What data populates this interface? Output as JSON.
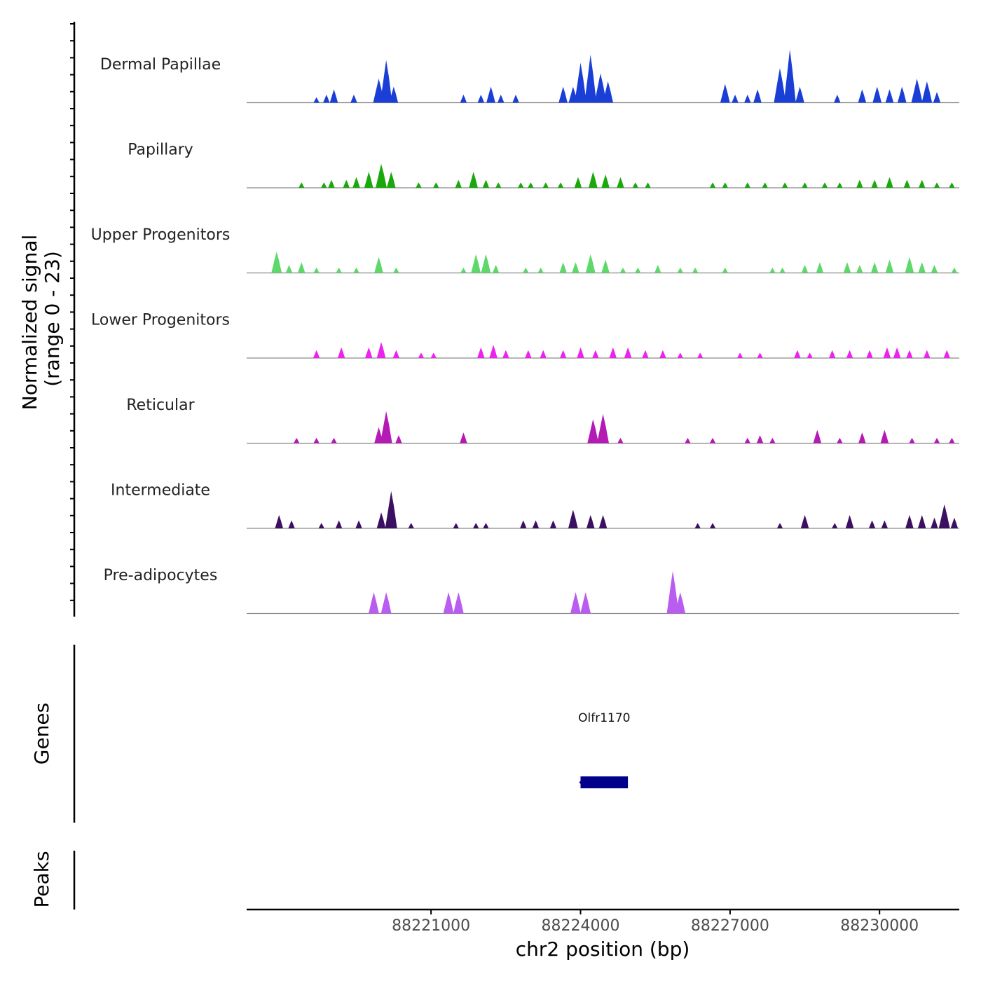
{
  "chart_data": {
    "type": "area",
    "title": "",
    "xlabel": "chr2 position (bp)",
    "ylabel": [
      "Normalized signal",
      "(range 0 - 23)"
    ],
    "xlim": [
      88217300,
      88231600
    ],
    "ylim": [
      0,
      23
    ],
    "x_ticks": [
      88221000,
      88224000,
      88227000,
      88230000
    ],
    "x_tick_labels": [
      "88221000",
      "88224000",
      "88227000",
      "88230000"
    ],
    "series": [
      {
        "name": "Dermal Papillae",
        "color": "#1a3fd6",
        "peaks": [
          [
            88218700,
            2
          ],
          [
            88218900,
            3
          ],
          [
            88219050,
            5
          ],
          [
            88219450,
            3
          ],
          [
            88219950,
            9
          ],
          [
            88220100,
            16
          ],
          [
            88220250,
            6
          ],
          [
            88221650,
            3
          ],
          [
            88222000,
            3
          ],
          [
            88222200,
            6
          ],
          [
            88222400,
            3
          ],
          [
            88222700,
            3
          ],
          [
            88223650,
            6
          ],
          [
            88223850,
            6
          ],
          [
            88224000,
            15
          ],
          [
            88224200,
            18
          ],
          [
            88224400,
            11
          ],
          [
            88224550,
            8
          ],
          [
            88226900,
            7
          ],
          [
            88227100,
            3
          ],
          [
            88227350,
            3
          ],
          [
            88227550,
            5
          ],
          [
            88228000,
            13
          ],
          [
            88228200,
            20
          ],
          [
            88228400,
            6
          ],
          [
            88229150,
            3
          ],
          [
            88229650,
            5
          ],
          [
            88229950,
            6
          ],
          [
            88230200,
            5
          ],
          [
            88230450,
            6
          ],
          [
            88230750,
            9
          ],
          [
            88230950,
            8
          ],
          [
            88231150,
            4
          ]
        ]
      },
      {
        "name": "Papillary",
        "color": "#1aa80c",
        "peaks": [
          [
            88218400,
            2
          ],
          [
            88218850,
            2
          ],
          [
            88219000,
            3
          ],
          [
            88219300,
            3
          ],
          [
            88219500,
            4
          ],
          [
            88219750,
            6
          ],
          [
            88220000,
            9
          ],
          [
            88220200,
            6
          ],
          [
            88220750,
            2
          ],
          [
            88221100,
            2
          ],
          [
            88221550,
            3
          ],
          [
            88221850,
            6
          ],
          [
            88222100,
            3
          ],
          [
            88222350,
            2
          ],
          [
            88222800,
            2
          ],
          [
            88223000,
            2
          ],
          [
            88223300,
            2
          ],
          [
            88223600,
            2
          ],
          [
            88223950,
            4
          ],
          [
            88224250,
            6
          ],
          [
            88224500,
            5
          ],
          [
            88224800,
            4
          ],
          [
            88225100,
            2
          ],
          [
            88225350,
            2
          ],
          [
            88226650,
            2
          ],
          [
            88226900,
            2
          ],
          [
            88227350,
            2
          ],
          [
            88227700,
            2
          ],
          [
            88228100,
            2
          ],
          [
            88228500,
            2
          ],
          [
            88228900,
            2
          ],
          [
            88229200,
            2
          ],
          [
            88229600,
            3
          ],
          [
            88229900,
            3
          ],
          [
            88230200,
            4
          ],
          [
            88230550,
            3
          ],
          [
            88230850,
            3
          ],
          [
            88231150,
            2
          ],
          [
            88231450,
            2
          ]
        ]
      },
      {
        "name": "Upper Progenitors",
        "color": "#5ed86a",
        "peaks": [
          [
            88217900,
            8
          ],
          [
            88218150,
            3
          ],
          [
            88218400,
            4
          ],
          [
            88218700,
            2
          ],
          [
            88219150,
            2
          ],
          [
            88219500,
            2
          ],
          [
            88219950,
            6
          ],
          [
            88220300,
            2
          ],
          [
            88221650,
            2
          ],
          [
            88221900,
            7
          ],
          [
            88222100,
            7
          ],
          [
            88222300,
            3
          ],
          [
            88222900,
            2
          ],
          [
            88223200,
            2
          ],
          [
            88223650,
            4
          ],
          [
            88223900,
            4
          ],
          [
            88224200,
            7
          ],
          [
            88224500,
            5
          ],
          [
            88224850,
            2
          ],
          [
            88225150,
            2
          ],
          [
            88225550,
            3
          ],
          [
            88226000,
            2
          ],
          [
            88226300,
            2
          ],
          [
            88226900,
            2
          ],
          [
            88227850,
            2
          ],
          [
            88228050,
            2
          ],
          [
            88228500,
            3
          ],
          [
            88228800,
            4
          ],
          [
            88229350,
            4
          ],
          [
            88229600,
            3
          ],
          [
            88229900,
            4
          ],
          [
            88230200,
            5
          ],
          [
            88230600,
            6
          ],
          [
            88230850,
            4
          ],
          [
            88231100,
            3
          ],
          [
            88231500,
            2
          ]
        ]
      },
      {
        "name": "Lower Progenitors",
        "color": "#ee22ee",
        "peaks": [
          [
            88218700,
            3
          ],
          [
            88219200,
            4
          ],
          [
            88219750,
            4
          ],
          [
            88220000,
            6
          ],
          [
            88220300,
            3
          ],
          [
            88220800,
            2
          ],
          [
            88221050,
            2
          ],
          [
            88222000,
            4
          ],
          [
            88222250,
            5
          ],
          [
            88222500,
            3
          ],
          [
            88222950,
            3
          ],
          [
            88223250,
            3
          ],
          [
            88223650,
            3
          ],
          [
            88224000,
            4
          ],
          [
            88224300,
            3
          ],
          [
            88224650,
            4
          ],
          [
            88224950,
            4
          ],
          [
            88225300,
            3
          ],
          [
            88225650,
            3
          ],
          [
            88226000,
            2
          ],
          [
            88226400,
            2
          ],
          [
            88227200,
            2
          ],
          [
            88227600,
            2
          ],
          [
            88228350,
            3
          ],
          [
            88228600,
            2
          ],
          [
            88229050,
            3
          ],
          [
            88229400,
            3
          ],
          [
            88229800,
            3
          ],
          [
            88230150,
            4
          ],
          [
            88230350,
            4
          ],
          [
            88230600,
            3
          ],
          [
            88230950,
            3
          ],
          [
            88231350,
            3
          ]
        ]
      },
      {
        "name": "Reticular",
        "color": "#b41ab4",
        "peaks": [
          [
            88218300,
            2
          ],
          [
            88218700,
            2
          ],
          [
            88219050,
            2
          ],
          [
            88219950,
            6
          ],
          [
            88220100,
            12
          ],
          [
            88220350,
            3
          ],
          [
            88221650,
            4
          ],
          [
            88224250,
            9
          ],
          [
            88224450,
            11
          ],
          [
            88224800,
            2
          ],
          [
            88226150,
            2
          ],
          [
            88226650,
            2
          ],
          [
            88227350,
            2
          ],
          [
            88227600,
            3
          ],
          [
            88227850,
            2
          ],
          [
            88228750,
            5
          ],
          [
            88229200,
            2
          ],
          [
            88229650,
            4
          ],
          [
            88230100,
            5
          ],
          [
            88230650,
            2
          ],
          [
            88231150,
            2
          ],
          [
            88231450,
            2
          ]
        ]
      },
      {
        "name": "Intermediate",
        "color": "#3c1060",
        "peaks": [
          [
            88217950,
            5
          ],
          [
            88218200,
            3
          ],
          [
            88218800,
            2
          ],
          [
            88219150,
            3
          ],
          [
            88219550,
            3
          ],
          [
            88220000,
            6
          ],
          [
            88220200,
            14
          ],
          [
            88220600,
            2
          ],
          [
            88221500,
            2
          ],
          [
            88221900,
            2
          ],
          [
            88222100,
            2
          ],
          [
            88222850,
            3
          ],
          [
            88223100,
            3
          ],
          [
            88223450,
            3
          ],
          [
            88223850,
            7
          ],
          [
            88224200,
            5
          ],
          [
            88224450,
            5
          ],
          [
            88226350,
            2
          ],
          [
            88226650,
            2
          ],
          [
            88228000,
            2
          ],
          [
            88228500,
            5
          ],
          [
            88229100,
            2
          ],
          [
            88229400,
            5
          ],
          [
            88229850,
            3
          ],
          [
            88230100,
            3
          ],
          [
            88230600,
            5
          ],
          [
            88230850,
            5
          ],
          [
            88231100,
            4
          ],
          [
            88231300,
            9
          ],
          [
            88231500,
            4
          ]
        ]
      },
      {
        "name": "Pre-adipocytes",
        "color": "#b95cf0",
        "peaks": [
          [
            88219850,
            8
          ],
          [
            88220100,
            8
          ],
          [
            88221350,
            8
          ],
          [
            88221550,
            8
          ],
          [
            88223900,
            8
          ],
          [
            88224100,
            8
          ],
          [
            88225850,
            16
          ],
          [
            88226000,
            8
          ]
        ]
      }
    ],
    "genes": [
      {
        "name": "Olfr1170",
        "start": 88224000,
        "end": 88224950,
        "color": "#00008b"
      }
    ],
    "track_titles": [
      "Genes",
      "Peaks"
    ]
  }
}
